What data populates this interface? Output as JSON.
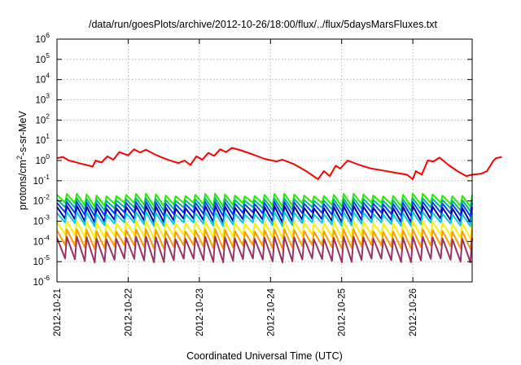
{
  "chart_data": {
    "type": "line",
    "title": "/data/run/goesPlots/archive/2012-10-26/18:00/flux/../flux/5daysMarsFluxes.txt",
    "xlabel": "Coordinated Universal Time (UTC)",
    "ylabel_main": "protons/cm",
    "ylabel_sup": "2",
    "ylabel_rest": "-s-sr-MeV",
    "y_scale": "log",
    "ylim": [
      1e-06,
      1000000.0
    ],
    "xlim_days": [
      "2012-10-21T00:00",
      "2012-10-26T20:00"
    ],
    "y_ticks": [
      {
        "base": "10",
        "exp": "-6",
        "value": 1e-06
      },
      {
        "base": "10",
        "exp": "-5",
        "value": 1e-05
      },
      {
        "base": "10",
        "exp": "-4",
        "value": 0.0001
      },
      {
        "base": "10",
        "exp": "-3",
        "value": 0.001
      },
      {
        "base": "10",
        "exp": "-2",
        "value": 0.01
      },
      {
        "base": "10",
        "exp": "-1",
        "value": 0.1
      },
      {
        "base": "10",
        "exp": "0",
        "value": 1.0
      },
      {
        "base": "10",
        "exp": "1",
        "value": 10.0
      },
      {
        "base": "10",
        "exp": "2",
        "value": 100.0
      },
      {
        "base": "10",
        "exp": "3",
        "value": 1000.0
      },
      {
        "base": "10",
        "exp": "4",
        "value": 10000.0
      },
      {
        "base": "10",
        "exp": "5",
        "value": 100000.0
      },
      {
        "base": "10",
        "exp": "6",
        "value": 1000000.0
      }
    ],
    "x_ticks": [
      "2012-10-21",
      "2012-10-22",
      "2012-10-23",
      "2012-10-24",
      "2012-10-25",
      "2012-10-26"
    ],
    "grid": true,
    "series": [
      {
        "color": "#ff0000",
        "points": [
          [
            "2012-10-21T00:00",
            1.3
          ],
          [
            "2012-10-21T02:00",
            1.5
          ],
          [
            "2012-10-21T04:00",
            1.0
          ],
          [
            "2012-10-21T06:00",
            0.85
          ],
          [
            "2012-10-21T08:00",
            0.7
          ],
          [
            "2012-10-21T10:00",
            0.6
          ],
          [
            "2012-10-21T12:00",
            0.5
          ],
          [
            "2012-10-21T13:00",
            1.0
          ],
          [
            "2012-10-21T15:00",
            0.8
          ],
          [
            "2012-10-21T17:00",
            1.6
          ],
          [
            "2012-10-21T19:00",
            1.1
          ],
          [
            "2012-10-21T21:00",
            2.6
          ],
          [
            "2012-10-22T00:00",
            1.8
          ],
          [
            "2012-10-22T02:00",
            3.6
          ],
          [
            "2012-10-22T04:00",
            2.5
          ],
          [
            "2012-10-22T06:00",
            3.4
          ],
          [
            "2012-10-22T09:00",
            2.0
          ],
          [
            "2012-10-22T12:00",
            1.3
          ],
          [
            "2012-10-22T15:00",
            0.9
          ],
          [
            "2012-10-22T17:00",
            0.75
          ],
          [
            "2012-10-22T19:00",
            1.0
          ],
          [
            "2012-10-22T21:00",
            0.6
          ],
          [
            "2012-10-22T23:00",
            1.6
          ],
          [
            "2012-10-23T01:00",
            1.1
          ],
          [
            "2012-10-23T03:00",
            2.4
          ],
          [
            "2012-10-23T05:00",
            1.7
          ],
          [
            "2012-10-23T07:00",
            3.6
          ],
          [
            "2012-10-23T09:00",
            2.6
          ],
          [
            "2012-10-23T11:00",
            4.2
          ],
          [
            "2012-10-23T14:00",
            3.2
          ],
          [
            "2012-10-23T18:00",
            2.0
          ],
          [
            "2012-10-23T22:00",
            1.2
          ],
          [
            "2012-10-24T02:00",
            0.9
          ],
          [
            "2012-10-24T04:00",
            1.1
          ],
          [
            "2012-10-24T08:00",
            0.65
          ],
          [
            "2012-10-24T12:00",
            0.3
          ],
          [
            "2012-10-24T16:00",
            0.12
          ],
          [
            "2012-10-24T18:00",
            0.3
          ],
          [
            "2012-10-24T20:00",
            0.17
          ],
          [
            "2012-10-24T22:00",
            0.55
          ],
          [
            "2012-10-24T23:30",
            0.4
          ],
          [
            "2012-10-25T02:00",
            1.0
          ],
          [
            "2012-10-25T06:00",
            0.6
          ],
          [
            "2012-10-25T10:00",
            0.4
          ],
          [
            "2012-10-25T14:00",
            0.32
          ],
          [
            "2012-10-25T18:00",
            0.25
          ],
          [
            "2012-10-25T22:00",
            0.2
          ],
          [
            "2012-10-26T00:00",
            0.12
          ],
          [
            "2012-10-26T01:00",
            0.3
          ],
          [
            "2012-10-26T03:00",
            0.2
          ],
          [
            "2012-10-26T05:00",
            1.0
          ],
          [
            "2012-10-26T07:00",
            0.9
          ],
          [
            "2012-10-26T09:00",
            1.4
          ],
          [
            "2012-10-26T12:00",
            0.6
          ],
          [
            "2012-10-26T15:00",
            0.3
          ],
          [
            "2012-10-26T18:00",
            0.17
          ],
          [
            "2012-10-26T20:00",
            0.2
          ],
          [
            "2012-10-26T23:00",
            0.22
          ],
          [
            "2012-10-27T01:00",
            0.3
          ],
          [
            "2012-10-27T03:00",
            0.9
          ],
          [
            "2012-10-27T04:00",
            1.3
          ],
          [
            "2012-10-27T06:00",
            1.5
          ]
        ]
      },
      {
        "color": "#22ee00",
        "periodic": {
          "base": 0.02,
          "low": 0.0075,
          "cycles": 42
        }
      },
      {
        "color": "#00bb88",
        "periodic": {
          "base": 0.012,
          "low": 0.0045,
          "cycles": 42
        }
      },
      {
        "color": "#0044ff",
        "periodic": {
          "base": 0.008,
          "low": 0.0025,
          "cycles": 42
        }
      },
      {
        "color": "#0000aa",
        "periodic": {
          "base": 0.005,
          "low": 0.0012,
          "cycles": 42
        }
      },
      {
        "color": "#00ccdd",
        "periodic": {
          "base": 0.0025,
          "low": 0.0008,
          "cycles": 42
        }
      },
      {
        "color": "#ffee00",
        "periodic": {
          "base": 0.0009,
          "low": 0.0002,
          "cycles": 42
        }
      },
      {
        "color": "#ff9900",
        "periodic": {
          "base": 0.00035,
          "low": 6e-05,
          "cycles": 42
        }
      },
      {
        "color": "#993366",
        "periodic": {
          "base": 0.00015,
          "low": 1.3e-05,
          "cycles": 42
        }
      }
    ]
  }
}
